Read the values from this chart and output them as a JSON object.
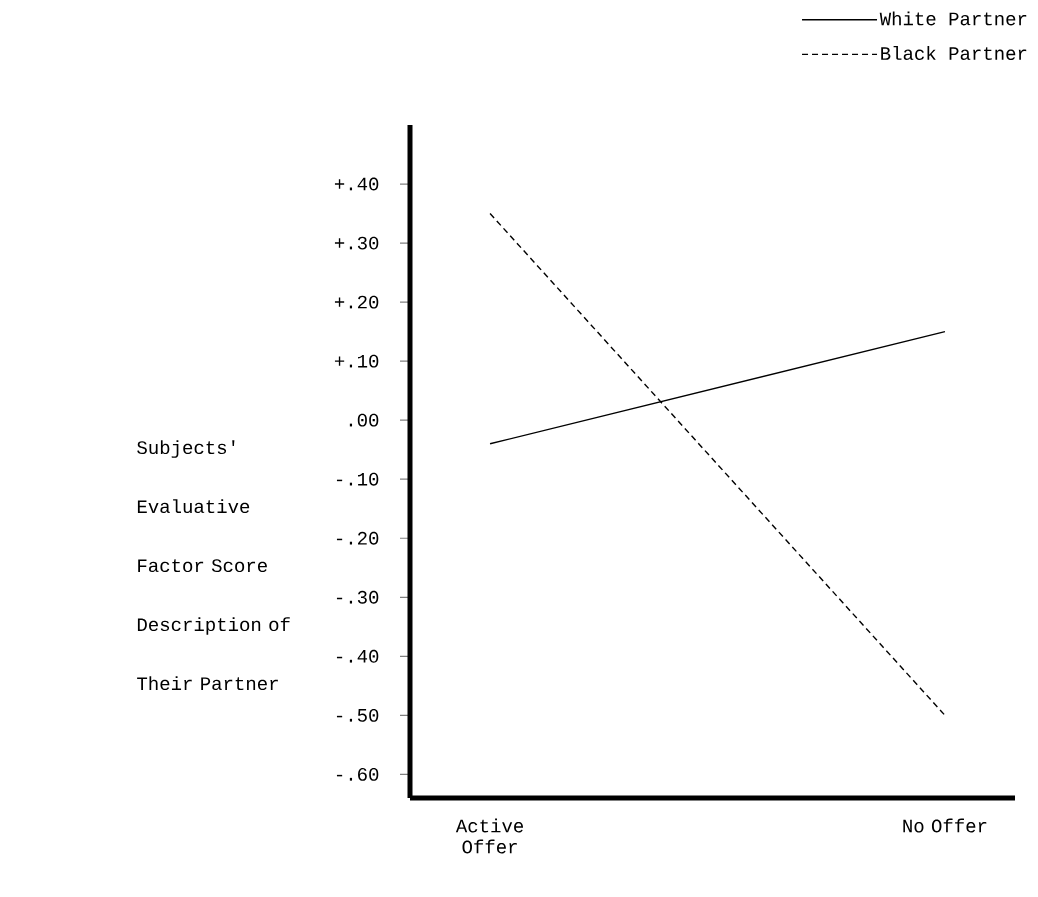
{
  "chart_data": {
    "type": "line",
    "ylabel": "Subjects' Evaluative Factor Score Description of Their Partner",
    "categories": [
      "Active Offer",
      "No Offer"
    ],
    "series": [
      {
        "name": "White Partner",
        "color": "#000000",
        "line_style": "solid",
        "values": [
          -0.04,
          0.15
        ]
      },
      {
        "name": "Black Partner",
        "color": "#000000",
        "line_style": "dashed",
        "values": [
          0.35,
          -0.5
        ]
      }
    ],
    "ylim": [
      -0.64,
      0.5
    ],
    "yticks": [
      {
        "value": 0.4,
        "label": "+.40"
      },
      {
        "value": 0.3,
        "label": "+.30"
      },
      {
        "value": 0.2,
        "label": "+.20"
      },
      {
        "value": 0.1,
        "label": "+.10"
      },
      {
        "value": 0.0,
        "label": ".00"
      },
      {
        "value": -0.1,
        "label": "-.10"
      },
      {
        "value": -0.2,
        "label": "-.20"
      },
      {
        "value": -0.3,
        "label": "-.30"
      },
      {
        "value": -0.4,
        "label": "-.40"
      },
      {
        "value": -0.5,
        "label": "-.50"
      },
      {
        "value": -0.6,
        "label": "-.60"
      }
    ],
    "legend": "top right",
    "grid": false,
    "marker": "none"
  }
}
